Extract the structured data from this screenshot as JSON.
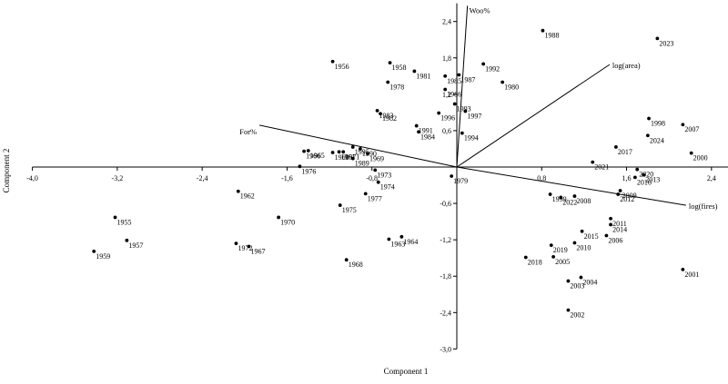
{
  "chart_data": {
    "type": "scatter",
    "subtype": "pca-biplot",
    "xlabel": "Component 1",
    "ylabel": "Component 2",
    "xlim": [
      -4.0,
      2.6
    ],
    "ylim": [
      -3.0,
      2.7
    ],
    "x_ticks": [
      -4.0,
      -3.2,
      -2.4,
      -1.6,
      -0.8,
      0.8,
      1.6,
      2.4
    ],
    "x_tick_labels": [
      "-4,0",
      "-3,2",
      "-2,4",
      "-1,6",
      "-0,8",
      "0,8",
      "1,6",
      "2,4"
    ],
    "y_ticks": [
      2.4,
      1.8,
      1.2,
      0.6,
      -0.6,
      -1.2,
      -1.8,
      -2.4,
      -3.0
    ],
    "y_tick_labels": [
      "2,4",
      "1,8",
      "1,2",
      "0,6",
      "-0,6",
      "-1,2",
      "-1,8",
      "-2,4",
      "-3,0"
    ],
    "grid": false,
    "legend": false,
    "points": [
      {
        "label": "1955",
        "x": -3.22,
        "y": -0.83
      },
      {
        "label": "1956",
        "x": -1.17,
        "y": 1.74
      },
      {
        "label": "1957",
        "x": -3.11,
        "y": -1.21
      },
      {
        "label": "1958",
        "x": -0.63,
        "y": 1.72
      },
      {
        "label": "1959",
        "x": -3.42,
        "y": -1.39
      },
      {
        "label": "1960",
        "x": -1.17,
        "y": 0.24
      },
      {
        "label": "1961",
        "x": -1.11,
        "y": 0.25
      },
      {
        "label": "1962",
        "x": -2.06,
        "y": -0.4
      },
      {
        "label": "1963",
        "x": -0.64,
        "y": -1.19
      },
      {
        "label": "1964",
        "x": -0.52,
        "y": -1.15
      },
      {
        "label": "1965",
        "x": -1.4,
        "y": 0.27
      },
      {
        "label": "1966",
        "x": -1.44,
        "y": 0.26
      },
      {
        "label": "1967",
        "x": -1.96,
        "y": -1.31
      },
      {
        "label": "1968",
        "x": -1.04,
        "y": -1.53
      },
      {
        "label": "1969",
        "x": -0.84,
        "y": 0.22
      },
      {
        "label": "1970",
        "x": -1.68,
        "y": -0.83
      },
      {
        "label": "1971",
        "x": -1.07,
        "y": 0.25
      },
      {
        "label": "1972",
        "x": -2.08,
        "y": -1.26
      },
      {
        "label": "1973",
        "x": -0.77,
        "y": -0.05
      },
      {
        "label": "1974",
        "x": -0.74,
        "y": -0.25
      },
      {
        "label": "1975",
        "x": -1.1,
        "y": -0.63
      },
      {
        "label": "1976",
        "x": -1.48,
        "y": 0.01
      },
      {
        "label": "1977",
        "x": -0.86,
        "y": -0.44
      },
      {
        "label": "1978",
        "x": -0.65,
        "y": 1.4
      },
      {
        "label": "1979",
        "x": -0.05,
        "y": -0.15
      },
      {
        "label": "1980",
        "x": 0.43,
        "y": 1.4
      },
      {
        "label": "1981",
        "x": -0.4,
        "y": 1.58
      },
      {
        "label": "1982",
        "x": -0.72,
        "y": 0.88
      },
      {
        "label": "1983",
        "x": -0.75,
        "y": 0.93
      },
      {
        "label": "1984",
        "x": -0.36,
        "y": 0.58
      },
      {
        "label": "1985",
        "x": -0.11,
        "y": 1.5
      },
      {
        "label": "1986",
        "x": -0.11,
        "y": 1.28
      },
      {
        "label": "1987",
        "x": 0.02,
        "y": 1.52
      },
      {
        "label": "1988",
        "x": 0.81,
        "y": 2.25
      },
      {
        "label": "1989",
        "x": -0.98,
        "y": 0.14
      },
      {
        "label": "1990",
        "x": -0.91,
        "y": 0.3
      },
      {
        "label": "1991",
        "x": -0.38,
        "y": 0.68
      },
      {
        "label": "1992",
        "x": 0.25,
        "y": 1.7
      },
      {
        "label": "1993",
        "x": -0.02,
        "y": 1.04
      },
      {
        "label": "1994",
        "x": 0.05,
        "y": 0.56
      },
      {
        "label": "1995",
        "x": -0.98,
        "y": 0.33
      },
      {
        "label": "1996",
        "x": -0.17,
        "y": 0.89
      },
      {
        "label": "1997",
        "x": 0.08,
        "y": 0.92
      },
      {
        "label": "1998",
        "x": 1.81,
        "y": 0.8
      },
      {
        "label": "1999",
        "x": 0.88,
        "y": -0.45
      },
      {
        "label": "2000",
        "x": 2.21,
        "y": 0.23
      },
      {
        "label": "2001",
        "x": 2.13,
        "y": -1.69
      },
      {
        "label": "2002",
        "x": 1.05,
        "y": -2.36
      },
      {
        "label": "2003",
        "x": 1.05,
        "y": -1.88
      },
      {
        "label": "2004",
        "x": 1.17,
        "y": -1.82
      },
      {
        "label": "2005",
        "x": 0.91,
        "y": -1.48
      },
      {
        "label": "2006",
        "x": 1.41,
        "y": -1.13
      },
      {
        "label": "2007",
        "x": 2.13,
        "y": 0.7
      },
      {
        "label": "2008",
        "x": 1.11,
        "y": -0.48
      },
      {
        "label": "2009",
        "x": 1.54,
        "y": -0.39
      },
      {
        "label": "2010",
        "x": 1.11,
        "y": -1.25
      },
      {
        "label": "2011",
        "x": 1.45,
        "y": -0.85
      },
      {
        "label": "2012",
        "x": 1.52,
        "y": -0.45
      },
      {
        "label": "2013",
        "x": 1.76,
        "y": -0.13
      },
      {
        "label": "2014",
        "x": 1.45,
        "y": -0.95
      },
      {
        "label": "2015",
        "x": 1.18,
        "y": -1.06
      },
      {
        "label": "2016",
        "x": 1.68,
        "y": -0.17
      },
      {
        "label": "2017",
        "x": 1.5,
        "y": 0.33
      },
      {
        "label": "2018",
        "x": 0.65,
        "y": -1.49
      },
      {
        "label": "2019",
        "x": 0.89,
        "y": -1.29
      },
      {
        "label": "2020",
        "x": 1.7,
        "y": -0.04
      },
      {
        "label": "2021",
        "x": 1.28,
        "y": 0.08
      },
      {
        "label": "2022",
        "x": 0.98,
        "y": -0.5
      },
      {
        "label": "2023",
        "x": 1.89,
        "y": 2.12
      },
      {
        "label": "2024",
        "x": 1.8,
        "y": 0.52
      }
    ],
    "vectors": [
      {
        "name": "Woo%",
        "x": 0.1,
        "y": 2.66
      },
      {
        "name": "log(area)",
        "x": 1.44,
        "y": 1.69
      },
      {
        "name": "log(fires)",
        "x": 2.16,
        "y": -0.63
      },
      {
        "name": "For%",
        "x": -1.86,
        "y": 0.69
      }
    ]
  }
}
